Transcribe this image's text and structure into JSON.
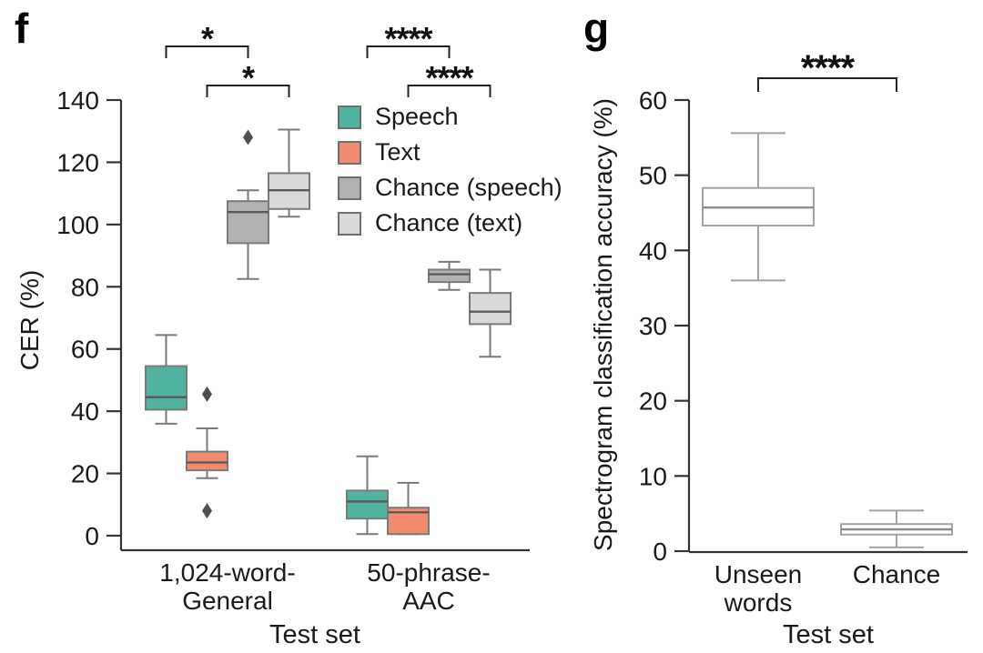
{
  "chart_data": [
    {
      "type": "box",
      "panel_label": "f",
      "xlabel": "Test set",
      "ylabel": "CER (%)",
      "ylim": [
        0,
        140
      ],
      "yticks": [
        0,
        20,
        40,
        60,
        80,
        100,
        120,
        140
      ],
      "categories": [
        [
          "1,024-word-",
          "General"
        ],
        [
          "50-phrase-",
          "AAC"
        ]
      ],
      "grid": false,
      "legend_position": "inside-top-right",
      "colors": {
        "axis": "#333333",
        "box_line": "#7a7a7a",
        "median": "#5a5a5a",
        "outlier": "#4f4f4f",
        "bracket": "#222222"
      },
      "legend": [
        {
          "label": "Speech",
          "color": "#4fb3a0"
        },
        {
          "label": "Text",
          "color": "#f28a6d"
        },
        {
          "label": "Chance (speech)",
          "color": "#b1b1b1"
        },
        {
          "label": "Chance (text)",
          "color": "#d9d9d9"
        }
      ],
      "series": [
        {
          "name": "Speech",
          "color": "#4fb3a0",
          "boxes": [
            {
              "category": "1,024-word-General",
              "whislo": 36,
              "q1": 40.5,
              "med": 44.5,
              "q3": 54.5,
              "whishi": 64.5,
              "outliers": []
            },
            {
              "category": "50-phrase-AAC",
              "whislo": 0.5,
              "q1": 5.5,
              "med": 11,
              "q3": 14.5,
              "whishi": 25.5,
              "outliers": []
            }
          ]
        },
        {
          "name": "Text",
          "color": "#f28a6d",
          "boxes": [
            {
              "category": "1,024-word-General",
              "whislo": 18.5,
              "q1": 21,
              "med": 23.5,
              "q3": 27,
              "whishi": 34.5,
              "outliers": [
                45.5,
                8
              ]
            },
            {
              "category": "50-phrase-AAC",
              "whislo": 0.5,
              "q1": 0.5,
              "med": 7.5,
              "q3": 9,
              "whishi": 17,
              "outliers": []
            }
          ]
        },
        {
          "name": "Chance (speech)",
          "color": "#b1b1b1",
          "boxes": [
            {
              "category": "1,024-word-General",
              "whislo": 82.5,
              "q1": 94,
              "med": 104,
              "q3": 107.5,
              "whishi": 111,
              "outliers": [
                128
              ]
            },
            {
              "category": "50-phrase-AAC",
              "whislo": 79,
              "q1": 81.5,
              "med": 84,
              "q3": 85.5,
              "whishi": 88,
              "outliers": []
            }
          ]
        },
        {
          "name": "Chance (text)",
          "color": "#d9d9d9",
          "boxes": [
            {
              "category": "1,024-word-General",
              "whislo": 102.5,
              "q1": 105,
              "med": 111,
              "q3": 116.5,
              "whishi": 130.5,
              "outliers": []
            },
            {
              "category": "50-phrase-AAC",
              "whislo": 57.5,
              "q1": 68,
              "med": 72,
              "q3": 78,
              "whishi": 85.5,
              "outliers": []
            }
          ]
        }
      ],
      "significance": [
        {
          "label": "*",
          "from": {
            "series": 0,
            "category": 0
          },
          "to": {
            "series": 2,
            "category": 0
          },
          "row": 0
        },
        {
          "label": "*",
          "from": {
            "series": 1,
            "category": 0
          },
          "to": {
            "series": 3,
            "category": 0
          },
          "row": 1
        },
        {
          "label": "****",
          "from": {
            "series": 0,
            "category": 1
          },
          "to": {
            "series": 2,
            "category": 1
          },
          "row": 0
        },
        {
          "label": "****",
          "from": {
            "series": 1,
            "category": 1
          },
          "to": {
            "series": 3,
            "category": 1
          },
          "row": 1
        }
      ]
    },
    {
      "type": "box",
      "panel_label": "g",
      "xlabel": "Test set",
      "ylabel": "Spectrogram classification accuracy (%)",
      "ylim": [
        0,
        60
      ],
      "yticks": [
        0,
        10,
        20,
        30,
        40,
        50,
        60
      ],
      "categories": [
        [
          "Unseen",
          "words"
        ],
        [
          "Chance"
        ]
      ],
      "grid": false,
      "colors": {
        "axis": "#333333",
        "box_line": "#a3a3a3",
        "median": "#8c8c8c",
        "outlier": "#4f4f4f",
        "bracket": "#222222"
      },
      "series": [
        {
          "name": "",
          "color": "#ffffff",
          "boxes": [
            {
              "category": "Unseen words",
              "whislo": 36,
              "q1": 43.3,
              "med": 45.7,
              "q3": 48.3,
              "whishi": 55.6,
              "outliers": []
            },
            {
              "category": "Chance",
              "whislo": 0.5,
              "q1": 2.2,
              "med": 2.9,
              "q3": 3.6,
              "whishi": 5.4,
              "outliers": []
            }
          ]
        }
      ],
      "significance": [
        {
          "label": "****",
          "from": {
            "series": 0,
            "category": 0
          },
          "to": {
            "series": 0,
            "category": 1
          },
          "row": 0
        }
      ]
    }
  ]
}
